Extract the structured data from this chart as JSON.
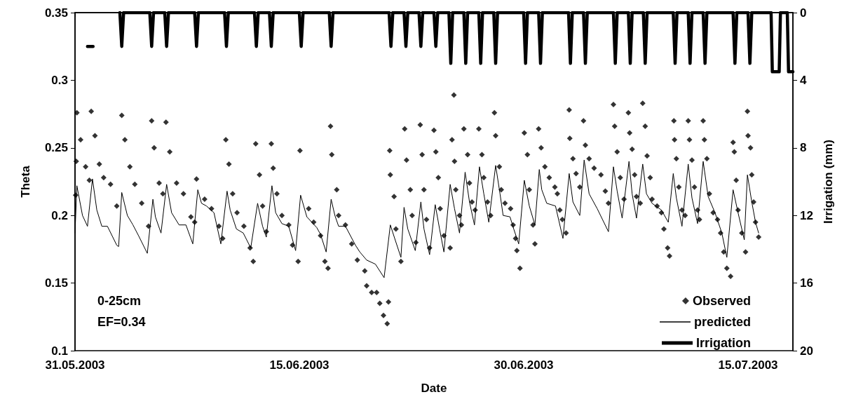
{
  "chart_data": {
    "type": "scatter",
    "xlabel": "Date",
    "ylabel": "Theta",
    "y2label": "Irrigation (mm)",
    "xlim": [
      "2003-05-31",
      "2003-07-18"
    ],
    "xticks": [
      {
        "value": "2003-05-31",
        "label": "31.05.2003"
      },
      {
        "value": "2003-06-15",
        "label": "15.06.2003"
      },
      {
        "value": "2003-06-30",
        "label": "30.06.2003"
      },
      {
        "value": "2003-07-15",
        "label": "15.07.2003"
      }
    ],
    "ylim": [
      0.1,
      0.35
    ],
    "yticks": [
      0.1,
      0.15,
      0.2,
      0.25,
      0.3,
      0.35
    ],
    "y2lim": [
      20,
      0
    ],
    "y2ticks": [
      0,
      4,
      8,
      12,
      16,
      20
    ],
    "grid": false,
    "legend": "bottom right",
    "annotations": [
      "0-25cm",
      "EF=0.34"
    ],
    "series": [
      {
        "name": "Observed",
        "marker": "diamond",
        "color": "#000000",
        "x": [
          "2003-05-31T01:00",
          "2003-05-31T02:00",
          "2003-05-31T03:00",
          "2003-05-31T09:00",
          "2003-05-31T17:00",
          "2003-05-31T23:00",
          "2003-06-01T02:00",
          "2003-06-01T08:00",
          "2003-06-01T15:00",
          "2003-06-01T22:00",
          "2003-06-02T09:00",
          "2003-06-02T19:00",
          "2003-06-03T03:00",
          "2003-06-03T08:00",
          "2003-06-03T16:00",
          "2003-06-04T00:00",
          "2003-06-04T11:00",
          "2003-06-04T22:00",
          "2003-06-05T03:00",
          "2003-06-05T07:00",
          "2003-06-05T15:00",
          "2003-06-05T21:00",
          "2003-06-06T02:00",
          "2003-06-06T08:00",
          "2003-06-06T19:00",
          "2003-06-07T06:00",
          "2003-06-07T18:00",
          "2003-06-08T00:00",
          "2003-06-08T03:00",
          "2003-06-08T16:00",
          "2003-06-09T03:00",
          "2003-06-09T15:00",
          "2003-06-09T21:00",
          "2003-06-10T02:00",
          "2003-06-10T07:00",
          "2003-06-10T13:00",
          "2003-06-10T20:00",
          "2003-06-11T07:00",
          "2003-06-11T17:00",
          "2003-06-11T22:00",
          "2003-06-12T02:00",
          "2003-06-12T08:00",
          "2003-06-12T13:00",
          "2003-06-12T19:00",
          "2003-06-13T03:00",
          "2003-06-13T06:00",
          "2003-06-13T12:00",
          "2003-06-13T20:00",
          "2003-06-14T07:00",
          "2003-06-14T13:00",
          "2003-06-14T22:00",
          "2003-06-15T01:00",
          "2003-06-15T15:00",
          "2003-06-15T23:00",
          "2003-06-16T10:00",
          "2003-06-16T17:00",
          "2003-06-16T22:00",
          "2003-06-17T02:00",
          "2003-06-17T04:00",
          "2003-06-17T12:00",
          "2003-06-17T15:00",
          "2003-06-18T02:00",
          "2003-06-18T12:00",
          "2003-06-18T21:00",
          "2003-06-19T09:00",
          "2003-06-19T12:00",
          "2003-06-19T20:00",
          "2003-06-20T04:00",
          "2003-06-20T09:00",
          "2003-06-20T15:00",
          "2003-06-20T21:00",
          "2003-06-20T23:00",
          "2003-06-21T01:00",
          "2003-06-21T02:00",
          "2003-06-21T08:00",
          "2003-06-21T11:00",
          "2003-06-21T19:00",
          "2003-06-22T01:00",
          "2003-06-22T04:00",
          "2003-06-22T10:00",
          "2003-06-22T13:00",
          "2003-06-22T19:00",
          "2003-06-23T02:00",
          "2003-06-23T05:00",
          "2003-06-23T08:00",
          "2003-06-23T12:00",
          "2003-06-23T17:00",
          "2003-06-24T00:00",
          "2003-06-24T03:00",
          "2003-06-24T07:00",
          "2003-06-24T10:00",
          "2003-06-24T16:00",
          "2003-06-25T02:00",
          "2003-06-25T05:00",
          "2003-06-25T08:00",
          "2003-06-25T09:00",
          "2003-06-25T11:00",
          "2003-06-25T17:00",
          "2003-06-25T20:00",
          "2003-06-26T00:00",
          "2003-06-26T06:00",
          "2003-06-26T09:00",
          "2003-06-26T13:00",
          "2003-06-26T18:00",
          "2003-06-27T00:00",
          "2003-06-27T05:00",
          "2003-06-27T08:00",
          "2003-06-27T14:00",
          "2003-06-27T19:00",
          "2003-06-28T01:00",
          "2003-06-28T03:00",
          "2003-06-28T09:00",
          "2003-06-28T12:00",
          "2003-06-28T18:00",
          "2003-06-29T03:00",
          "2003-06-29T07:00",
          "2003-06-29T11:00",
          "2003-06-29T13:00",
          "2003-06-29T18:00",
          "2003-06-30T01:00",
          "2003-06-30T06:00",
          "2003-06-30T09:00",
          "2003-06-30T15:00",
          "2003-06-30T18:00",
          "2003-07-01T00:00",
          "2003-07-01T04:00",
          "2003-07-01T10:00",
          "2003-07-01T17:00",
          "2003-07-02T02:00",
          "2003-07-02T06:00",
          "2003-07-02T10:00",
          "2003-07-02T14:00",
          "2003-07-02T20:00",
          "2003-07-03T01:00",
          "2003-07-03T02:00",
          "2003-07-03T07:00",
          "2003-07-03T12:00",
          "2003-07-03T18:00",
          "2003-07-04T00:00",
          "2003-07-04T03:00",
          "2003-07-04T09:00",
          "2003-07-04T17:00",
          "2003-07-05T04:00",
          "2003-07-05T11:00",
          "2003-07-05T16:00",
          "2003-07-06T00:00",
          "2003-07-06T02:00",
          "2003-07-06T06:00",
          "2003-07-06T11:00",
          "2003-07-06T17:00",
          "2003-07-07T00:00",
          "2003-07-07T02:00",
          "2003-07-07T06:00",
          "2003-07-07T10:00",
          "2003-07-07T13:00",
          "2003-07-07T19:00",
          "2003-07-07T23:00",
          "2003-07-08T03:00",
          "2003-07-08T06:00",
          "2003-07-08T11:00",
          "2003-07-08T14:00",
          "2003-07-08T22:00",
          "2003-07-09T05:00",
          "2003-07-09T09:00",
          "2003-07-09T15:00",
          "2003-07-09T18:00",
          "2003-07-10T01:00",
          "2003-07-10T02:00",
          "2003-07-10T05:00",
          "2003-07-10T09:00",
          "2003-07-10T14:00",
          "2003-07-10T19:00",
          "2003-07-11T00:00",
          "2003-07-11T02:00",
          "2003-07-11T06:00",
          "2003-07-11T10:00",
          "2003-07-11T15:00",
          "2003-07-11T18:00",
          "2003-07-12T00:00",
          "2003-07-12T02:00",
          "2003-07-12T06:00",
          "2003-07-12T10:00",
          "2003-07-12T16:00",
          "2003-07-12T23:00",
          "2003-07-13T04:00",
          "2003-07-13T09:00",
          "2003-07-13T14:00",
          "2003-07-13T20:00",
          "2003-07-14T00:00",
          "2003-07-14T02:00",
          "2003-07-14T05:00",
          "2003-07-14T08:00",
          "2003-07-14T14:00",
          "2003-07-14T20:00",
          "2003-07-14T23:00",
          "2003-07-15T00:00",
          "2003-07-15T04:00",
          "2003-07-15T06:00",
          "2003-07-15T09:00",
          "2003-07-15T12:00",
          "2003-07-15T17:00"
        ],
        "values": [
          0.215,
          0.24,
          0.276,
          0.256,
          0.236,
          0.226,
          0.277,
          0.259,
          0.238,
          0.228,
          0.223,
          0.207,
          0.274,
          0.256,
          0.236,
          0.223,
          0.209,
          0.192,
          0.27,
          0.25,
          0.224,
          0.216,
          0.269,
          0.247,
          0.224,
          0.216,
          0.199,
          0.195,
          0.227,
          0.212,
          0.205,
          0.192,
          0.183,
          0.256,
          0.238,
          0.216,
          0.202,
          0.192,
          0.176,
          0.166,
          0.253,
          0.23,
          0.207,
          0.188,
          0.253,
          0.235,
          0.216,
          0.2,
          0.193,
          0.178,
          0.166,
          0.248,
          0.205,
          0.195,
          0.185,
          0.166,
          0.161,
          0.266,
          0.245,
          0.219,
          0.2,
          0.193,
          0.179,
          0.167,
          0.159,
          0.148,
          0.143,
          0.143,
          0.135,
          0.126,
          0.12,
          0.136,
          0.248,
          0.23,
          0.214,
          0.19,
          0.166,
          0.264,
          0.241,
          0.219,
          0.2,
          0.18,
          0.267,
          0.245,
          0.219,
          0.197,
          0.176,
          0.263,
          0.247,
          0.228,
          0.205,
          0.185,
          0.176,
          0.256,
          0.289,
          0.24,
          0.219,
          0.2,
          0.193,
          0.264,
          0.245,
          0.224,
          0.21,
          0.204,
          0.264,
          0.245,
          0.228,
          0.21,
          0.2,
          0.276,
          0.259,
          0.236,
          0.219,
          0.209,
          0.205,
          0.193,
          0.183,
          0.174,
          0.161,
          0.261,
          0.245,
          0.219,
          0.193,
          0.179,
          0.264,
          0.25,
          0.236,
          0.228,
          0.221,
          0.216,
          0.204,
          0.197,
          0.187,
          0.278,
          0.257,
          0.242,
          0.231,
          0.221,
          0.27,
          0.252,
          0.242,
          0.235,
          0.23,
          0.218,
          0.209,
          0.282,
          0.266,
          0.247,
          0.228,
          0.212,
          0.276,
          0.261,
          0.249,
          0.23,
          0.214,
          0.209,
          0.283,
          0.266,
          0.244,
          0.228,
          0.212,
          0.207,
          0.202,
          0.19,
          0.176,
          0.17,
          0.27,
          0.256,
          0.242,
          0.221,
          0.204,
          0.2,
          0.27,
          0.256,
          0.241,
          0.221,
          0.204,
          0.197,
          0.27,
          0.256,
          0.242,
          0.216,
          0.202,
          0.197,
          0.187,
          0.173,
          0.161,
          0.155,
          0.254,
          0.247,
          0.226,
          0.204,
          0.187,
          0.173,
          0.277,
          0.259,
          0.25,
          0.23,
          0.21,
          0.195,
          0.184
        ]
      },
      {
        "name": "predicted",
        "type": "line",
        "marker": "none",
        "line_style": "solid",
        "color": "#000000",
        "x": [
          "2003-05-31T00:00",
          "2003-05-31T03:00",
          "2003-05-31T12:00",
          "2003-05-31T20:00",
          "2003-06-01T04:00",
          "2003-06-01T11:00",
          "2003-06-01T19:00",
          "2003-06-02T04:00",
          "2003-06-02T19:00",
          "2003-06-02T22:00",
          "2003-06-03T03:00",
          "2003-06-03T12:00",
          "2003-06-03T21:00",
          "2003-06-04T06:00",
          "2003-06-04T20:00",
          "2003-06-05T05:00",
          "2003-06-05T09:00",
          "2003-06-05T18:00",
          "2003-06-06T03:00",
          "2003-06-06T11:00",
          "2003-06-06T23:00",
          "2003-06-07T10:00",
          "2003-06-07T21:00",
          "2003-06-08T05:00",
          "2003-06-08T11:00",
          "2003-06-08T19:00",
          "2003-06-09T07:00",
          "2003-06-09T18:00",
          "2003-06-10T04:00",
          "2003-06-10T09:00",
          "2003-06-10T19:00",
          "2003-06-11T06:00",
          "2003-06-11T18:00",
          "2003-06-12T05:00",
          "2003-06-12T13:00",
          "2003-06-12T19:00",
          "2003-06-13T04:00",
          "2003-06-13T10:00",
          "2003-06-13T20:00",
          "2003-06-14T07:00",
          "2003-06-14T18:00",
          "2003-06-15T02:00",
          "2003-06-15T12:00",
          "2003-06-16T04:00",
          "2003-06-16T10:00",
          "2003-06-16T19:00",
          "2003-06-17T03:00",
          "2003-06-17T09:00",
          "2003-06-17T15:00",
          "2003-06-18T02:00",
          "2003-06-18T18:00",
          "2003-06-19T01:00",
          "2003-06-19T12:00",
          "2003-06-20T02:00",
          "2003-06-20T16:00",
          "2003-06-21T02:00",
          "2003-06-21T09:00",
          "2003-06-21T19:00",
          "2003-06-22T00:00",
          "2003-06-22T06:00",
          "2003-06-22T18:00",
          "2003-06-23T03:00",
          "2003-06-23T08:00",
          "2003-06-23T17:00",
          "2003-06-24T02:00",
          "2003-06-24T09:00",
          "2003-06-24T16:00",
          "2003-06-25T02:00",
          "2003-06-25T09:00",
          "2003-06-25T17:00",
          "2003-06-26T02:00",
          "2003-06-26T09:00",
          "2003-06-26T17:00",
          "2003-06-27T01:00",
          "2003-06-27T08:00",
          "2003-06-27T16:00",
          "2003-06-28T03:00",
          "2003-06-28T10:00",
          "2003-06-28T15:00",
          "2003-06-29T02:00",
          "2003-06-29T08:00",
          "2003-06-29T16:00",
          "2003-06-30T01:00",
          "2003-06-30T09:00",
          "2003-06-30T18:00",
          "2003-07-01T01:00",
          "2003-07-01T05:00",
          "2003-07-01T13:00",
          "2003-07-02T03:00",
          "2003-07-02T15:00",
          "2003-07-03T01:00",
          "2003-07-03T07:00",
          "2003-07-03T18:00",
          "2003-07-04T01:00",
          "2003-07-04T09:00",
          "2003-07-04T22:00",
          "2003-07-05T16:00",
          "2003-07-06T00:00",
          "2003-07-06T06:00",
          "2003-07-06T14:00",
          "2003-07-07T01:00",
          "2003-07-07T06:00",
          "2003-07-07T13:00",
          "2003-07-07T23:00",
          "2003-07-08T05:00",
          "2003-07-08T14:00",
          "2003-07-09T05:00",
          "2003-07-09T16:00",
          "2003-07-10T00:00",
          "2003-07-10T05:00",
          "2003-07-10T14:00",
          "2003-07-11T00:00",
          "2003-07-11T06:00",
          "2003-07-11T15:00",
          "2003-07-12T00:00",
          "2003-07-12T08:00",
          "2003-07-12T19:00",
          "2003-07-13T06:00",
          "2003-07-13T14:00",
          "2003-07-14T00:00",
          "2003-07-14T08:00",
          "2003-07-14T18:00",
          "2003-07-14T23:00",
          "2003-07-15T06:00",
          "2003-07-15T12:00",
          "2003-07-15T17:00"
        ],
        "values": [
          0.187,
          0.222,
          0.2,
          0.192,
          0.227,
          0.204,
          0.192,
          0.192,
          0.178,
          0.177,
          0.217,
          0.2,
          0.193,
          0.185,
          0.172,
          0.212,
          0.199,
          0.187,
          0.223,
          0.202,
          0.193,
          0.193,
          0.179,
          0.219,
          0.209,
          0.207,
          0.202,
          0.179,
          0.218,
          0.204,
          0.19,
          0.187,
          0.176,
          0.209,
          0.192,
          0.184,
          0.222,
          0.202,
          0.194,
          0.192,
          0.174,
          0.215,
          0.199,
          0.191,
          0.186,
          0.173,
          0.212,
          0.2,
          0.192,
          0.192,
          0.178,
          0.173,
          0.167,
          0.164,
          0.154,
          0.193,
          0.183,
          0.169,
          0.206,
          0.19,
          0.174,
          0.21,
          0.19,
          0.171,
          0.208,
          0.19,
          0.173,
          0.223,
          0.205,
          0.187,
          0.232,
          0.21,
          0.193,
          0.236,
          0.216,
          0.195,
          0.237,
          0.216,
          0.2,
          0.199,
          0.19,
          0.179,
          0.226,
          0.207,
          0.193,
          0.234,
          0.219,
          0.209,
          0.207,
          0.183,
          0.231,
          0.21,
          0.2,
          0.241,
          0.216,
          0.205,
          0.188,
          0.236,
          0.218,
          0.198,
          0.24,
          0.216,
          0.198,
          0.238,
          0.216,
          0.209,
          0.204,
          0.195,
          0.231,
          0.213,
          0.192,
          0.238,
          0.213,
          0.194,
          0.24,
          0.214,
          0.202,
          0.187,
          0.169,
          0.219,
          0.202,
          0.182,
          0.23,
          0.21,
          0.195,
          0.187
        ]
      },
      {
        "name": "Irrigation",
        "type": "line",
        "axis": "y2",
        "marker": "none",
        "line_style": "solid",
        "color": "#000000",
        "x": [
          "2003-05-31T20:00",
          "2003-06-01T05:00",
          "2003-06-01T06:00",
          "2003-06-03T00:00",
          "2003-06-03T03:00",
          "2003-06-03T06:00",
          "2003-06-05T00:00",
          "2003-06-05T03:00",
          "2003-06-05T06:00",
          "2003-06-06T00:00",
          "2003-06-06T03:00",
          "2003-06-06T06:00",
          "2003-06-08T00:00",
          "2003-06-08T03:00",
          "2003-06-08T06:00",
          "2003-06-10T00:00",
          "2003-06-10T03:00",
          "2003-06-10T06:00",
          "2003-06-12T00:00",
          "2003-06-12T03:00",
          "2003-06-12T06:00",
          "2003-06-13T00:00",
          "2003-06-13T03:00",
          "2003-06-13T06:00",
          "2003-06-15T00:00",
          "2003-06-15T03:00",
          "2003-06-15T06:00",
          "2003-06-17T00:00",
          "2003-06-17T03:00",
          "2003-06-17T06:00",
          "2003-06-21T00:00",
          "2003-06-21T03:00",
          "2003-06-21T06:00",
          "2003-06-22T00:00",
          "2003-06-22T03:00",
          "2003-06-22T06:00",
          "2003-06-23T00:00",
          "2003-06-23T03:00",
          "2003-06-23T06:00",
          "2003-06-24T00:00",
          "2003-06-24T03:00",
          "2003-06-24T06:00",
          "2003-06-25T00:00",
          "2003-06-25T03:00",
          "2003-06-25T06:00",
          "2003-06-26T00:00",
          "2003-06-26T03:00",
          "2003-06-26T06:00",
          "2003-06-27T00:00",
          "2003-06-27T03:00",
          "2003-06-27T06:00",
          "2003-06-28T00:00",
          "2003-06-28T03:00",
          "2003-06-28T06:00",
          "2003-06-30T00:00",
          "2003-06-30T03:00",
          "2003-06-30T06:00",
          "2003-07-01T00:00",
          "2003-07-01T03:00",
          "2003-07-01T06:00",
          "2003-07-03T00:00",
          "2003-07-03T03:00",
          "2003-07-03T06:00",
          "2003-07-04T00:00",
          "2003-07-04T03:00",
          "2003-07-04T06:00",
          "2003-07-06T00:00",
          "2003-07-06T03:00",
          "2003-07-06T06:00",
          "2003-07-07T00:00",
          "2003-07-07T03:00",
          "2003-07-07T06:00",
          "2003-07-08T00:00",
          "2003-07-08T03:00",
          "2003-07-08T06:00",
          "2003-07-10T00:00",
          "2003-07-10T03:00",
          "2003-07-10T06:00",
          "2003-07-11T00:00",
          "2003-07-11T03:00",
          "2003-07-11T06:00",
          "2003-07-12T00:00",
          "2003-07-12T03:00",
          "2003-07-12T06:00",
          "2003-07-14T00:00",
          "2003-07-14T03:00",
          "2003-07-14T06:00",
          "2003-07-15T00:00",
          "2003-07-15T03:00",
          "2003-07-15T06:00",
          "2003-07-16T13:00",
          "2003-07-16T15:00",
          "2003-07-17T02:00",
          "2003-07-17T04:00",
          "2003-07-17T15:00",
          "2003-07-17T17:00",
          "2003-07-18T00:00"
        ],
        "values": [
          2,
          2,
          null,
          0,
          2,
          0,
          0,
          2,
          0,
          0,
          2,
          0,
          0,
          2,
          0,
          0,
          2,
          0,
          0,
          2,
          0,
          0,
          2,
          0,
          0,
          2,
          0,
          0,
          2,
          0,
          0,
          2,
          0,
          0,
          2,
          0,
          0,
          2,
          0,
          0,
          2,
          0,
          0,
          3,
          0,
          0,
          3,
          0,
          0,
          3,
          0,
          0,
          3,
          0,
          0,
          3,
          0,
          0,
          3,
          0,
          0,
          3,
          0,
          0,
          3,
          0,
          0,
          3,
          0,
          0,
          3,
          0,
          0,
          3,
          0,
          0,
          3,
          0,
          0,
          3,
          0,
          0,
          3,
          0,
          0,
          3,
          0,
          0,
          3,
          0,
          0,
          3.5,
          3.5,
          0,
          0,
          3.5,
          3.5
        ]
      }
    ]
  }
}
